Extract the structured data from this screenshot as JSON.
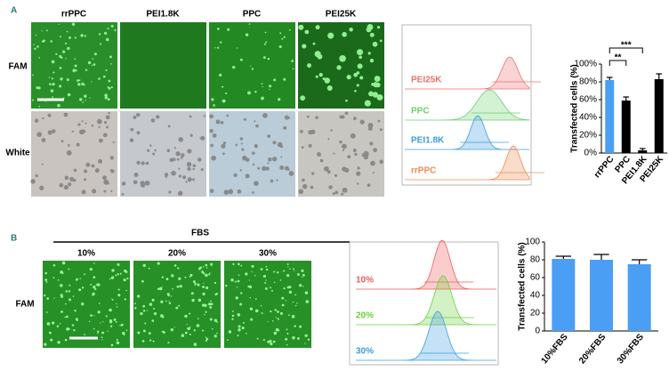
{
  "panel_a": {
    "label": "A",
    "columns": [
      "rrPPC",
      "PEI1.8K",
      "PPC",
      "PEI25K"
    ],
    "rows": [
      "FAM",
      "White"
    ],
    "flow_labels": [
      {
        "text": "PEI25K",
        "color": "#f07070"
      },
      {
        "text": "PPC",
        "color": "#6ccf6c"
      },
      {
        "text": "PEI1.8K",
        "color": "#3b9de0"
      },
      {
        "text": "rrPPC",
        "color": "#f08a50"
      }
    ]
  },
  "panel_b": {
    "label": "B",
    "group": "FBS",
    "columns": [
      "10%",
      "20%",
      "30%"
    ],
    "rows": [
      "FAM"
    ],
    "flow_labels": [
      {
        "text": "10%",
        "color": "#f05a5a"
      },
      {
        "text": "20%",
        "color": "#6ccf3c"
      },
      {
        "text": "30%",
        "color": "#3b9de0"
      }
    ]
  },
  "chart_data": [
    {
      "type": "bar",
      "y_label": "Transfected cells (%)",
      "categories": [
        "rrPPC",
        "PPC",
        "PEI1.8K",
        "PEI25K"
      ],
      "values": [
        82,
        59,
        3,
        83
      ],
      "errors": [
        3,
        4,
        2,
        6
      ],
      "colors": [
        "#4a9ff5",
        "#000000",
        "#000000",
        "#000000"
      ],
      "ylim": [
        0,
        100
      ],
      "yticks": [
        {
          "value": 0,
          "label": "0%"
        },
        {
          "value": 20,
          "label": "20%"
        },
        {
          "value": 40,
          "label": "40%"
        },
        {
          "value": 60,
          "label": "60%"
        },
        {
          "value": 80,
          "label": "80%"
        },
        {
          "value": 100,
          "label": "100%"
        }
      ],
      "annotations": [
        "**",
        "***"
      ]
    },
    {
      "type": "bar",
      "y_label": "Transfected cells (%)",
      "categories": [
        "10%FBS",
        "20%FBS",
        "30%FBS"
      ],
      "values": [
        81,
        80,
        75
      ],
      "errors": [
        3,
        6,
        5
      ],
      "colors": [
        "#4a9ff5",
        "#4a9ff5",
        "#4a9ff5"
      ],
      "ylim": [
        0,
        100
      ],
      "yticks": [
        0,
        20,
        40,
        60,
        80,
        100
      ]
    }
  ]
}
